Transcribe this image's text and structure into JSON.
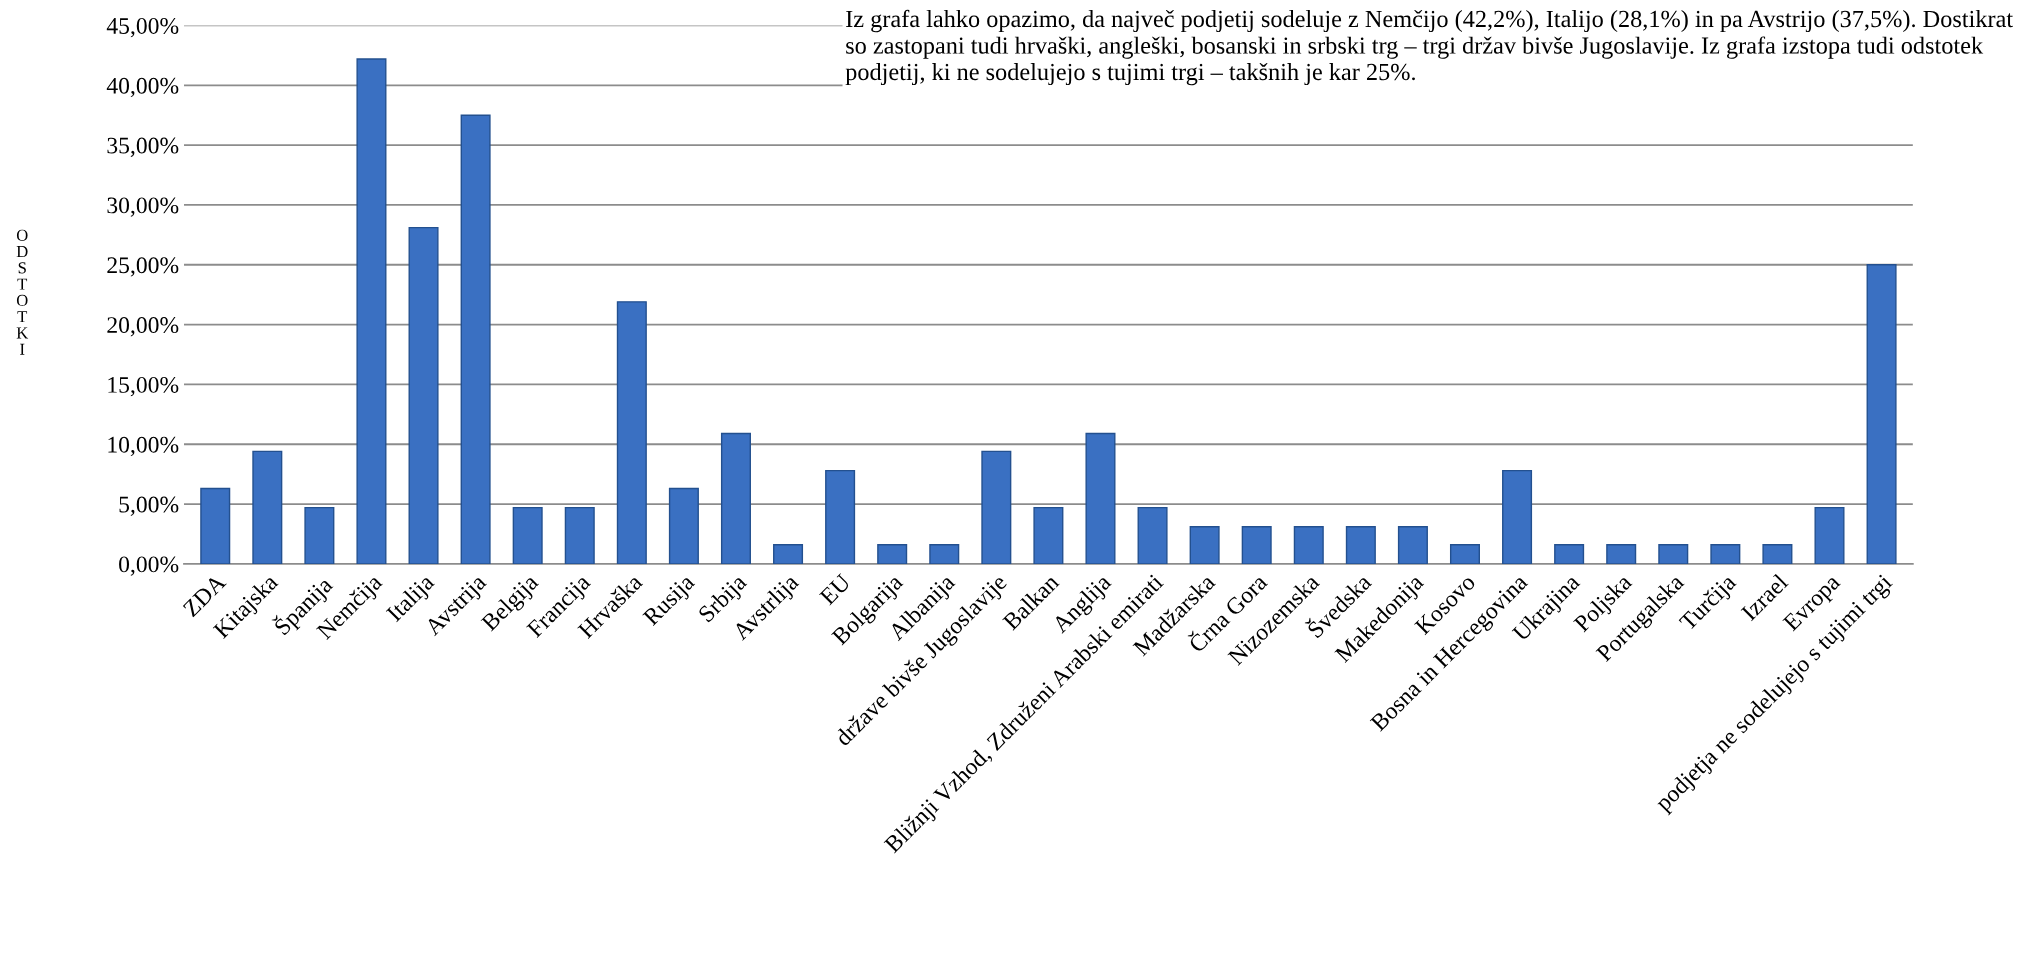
{
  "chart_data": {
    "type": "bar",
    "ylabel": "ODSTOTKI",
    "categories": [
      "ZDA",
      "Kitajska",
      "Španija",
      "Nemčija",
      "Italija",
      "Avstrija",
      "Belgija",
      "Francija",
      "Hrvaška",
      "Rusija",
      "Srbija",
      "Avstrlija",
      "EU",
      "Bolgarija",
      "Albanija",
      "države bivše Jugoslavije",
      "Balkan",
      "Anglija",
      "Bližnji Vzhod, Združeni Arabski emirati",
      "Madžarska",
      "Črna Gora",
      "Nizozemska",
      "Švedska",
      "Makedonija",
      "Kosovo",
      "Bosna in Hercegovina",
      "Ukrajina",
      "Poljska",
      "Portugalska",
      "Turčija",
      "Izrael",
      "Evropa",
      "podjetja ne sodelujejo s tujimi trgi"
    ],
    "values": [
      6.3,
      9.4,
      4.7,
      42.2,
      28.1,
      37.5,
      4.7,
      4.7,
      21.9,
      6.3,
      10.9,
      1.6,
      7.8,
      1.6,
      1.6,
      9.4,
      4.7,
      10.9,
      4.7,
      3.1,
      3.1,
      3.1,
      3.1,
      3.1,
      1.6,
      7.8,
      1.6,
      1.6,
      1.6,
      1.6,
      1.6,
      4.7,
      25
    ],
    "color": "#3a70c2",
    "ylim": [
      0,
      45
    ],
    "yticks": [
      {
        "value": 0,
        "label": "0,00%"
      },
      {
        "value": 5,
        "label": "5,00%"
      },
      {
        "value": 10,
        "label": "10,00%"
      },
      {
        "value": 15,
        "label": "15,00%"
      },
      {
        "value": 20,
        "label": "20,00%"
      },
      {
        "value": 25,
        "label": "25,00%"
      },
      {
        "value": 30,
        "label": "30,00%"
      },
      {
        "value": 35,
        "label": "35,00%"
      },
      {
        "value": 40,
        "label": "40,00%"
      },
      {
        "value": 45,
        "label": "45,00%"
      }
    ],
    "grid": "y",
    "annotations": [
      "Iz grafa lahko opazimo, da največ podjetij sodeluje z Nemčijo (42,2%), Italijo (28,1%) in pa Avstrijo (37,5%). Dostikrat so zastopani tudi hrvaški, angleški, bosanski in srbski trg – trgi držav bivše Jugoslavije. Iz grafa izstopa tudi odstotek podjetij, ki ne sodelujejo s tujimi trgi – takšnih je kar 25%."
    ]
  }
}
